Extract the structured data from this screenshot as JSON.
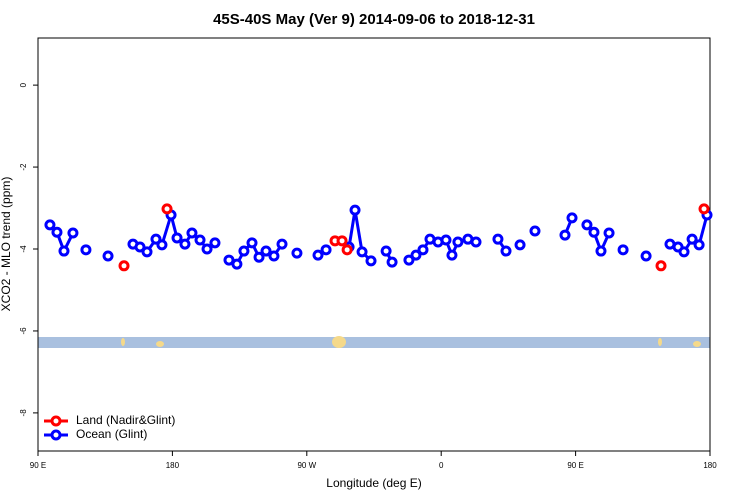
{
  "chart_data": {
    "type": "line",
    "title": "45S-40S May (Ver 9)   2014-09-06 to 2018-12-31",
    "xlabel": "Longitude (deg E)",
    "ylabel": "XCO2 - MLO trend (ppm)",
    "xlim": [
      90,
      540
    ],
    "ylim": [
      -8.93,
      1.15
    ],
    "xticks": [
      {
        "value": 90,
        "label": "90 E"
      },
      180,
      {
        "value": 270,
        "label": "90 W"
      },
      {
        "value": 360,
        "label": "0"
      },
      {
        "value": 450,
        "label": "90 E"
      },
      {
        "value": 540,
        "label": "180"
      }
    ],
    "yticks": [
      0,
      -2,
      -4,
      -6,
      -8
    ],
    "legend": "lower left",
    "series": [
      {
        "name": "Land (Nadir&Glint)",
        "color": "#ff0000",
        "x": [
          147.6,
          null,
          176.4,
          null,
          288.9,
          293.6,
          297,
          null,
          507.2,
          null,
          536
        ],
        "values": [
          -4.41,
          null,
          -3.02,
          null,
          -3.8,
          -3.8,
          -4.02,
          null,
          -4.41,
          null,
          -3.02
        ]
      },
      {
        "name": "Ocean (Glint)",
        "color": "#0000ff",
        "x": [
          98,
          102.7,
          107.4,
          113.4,
          null,
          122.1,
          null,
          136.9,
          null,
          153.6,
          158.3,
          163,
          169,
          173,
          179.1,
          183.1,
          188.4,
          193.1,
          198.5,
          203.2,
          208.5,
          null,
          217.9,
          223.2,
          227.9,
          233.3,
          238,
          242.7,
          248,
          253.4,
          null,
          263.4,
          null,
          277.5,
          282.9,
          null,
          298.3,
          302.3,
          307,
          313,
          null,
          323.1,
          327.1,
          null,
          338.4,
          343.1,
          347.8,
          352.5,
          357.9,
          363.2,
          367.2,
          371.2,
          377.9,
          383.3,
          null,
          398,
          403.4,
          null,
          412.8,
          null,
          422.8,
          null,
          442.9,
          447.6,
          null,
          457.6,
          462.3,
          467,
          472.4,
          null,
          481.8,
          null,
          497.2,
          null,
          513.2,
          518.6,
          522.6,
          528,
          532.7,
          538
        ],
        "values": [
          -3.41,
          -3.59,
          -4.05,
          -3.61,
          null,
          -4.02,
          null,
          -4.17,
          null,
          -3.88,
          -3.95,
          -4.07,
          -3.76,
          -3.9,
          -3.17,
          -3.73,
          -3.88,
          -3.61,
          -3.78,
          -4.0,
          -3.85,
          null,
          -4.27,
          -4.37,
          -4.05,
          -3.85,
          -4.2,
          -4.05,
          -4.17,
          -3.88,
          null,
          -4.1,
          null,
          -4.15,
          -4.02,
          null,
          -3.95,
          -3.05,
          -4.07,
          -4.29,
          null,
          -4.05,
          -4.32,
          null,
          -4.27,
          -4.15,
          -4.02,
          -3.76,
          -3.83,
          -3.78,
          -4.15,
          -3.83,
          -3.76,
          -3.83,
          null,
          -3.76,
          -4.05,
          null,
          -3.9,
          null,
          -3.56,
          null,
          -3.66,
          -3.24,
          null,
          -3.41,
          -3.59,
          -4.05,
          -3.61,
          null,
          -4.02,
          null,
          -4.17,
          null,
          -3.88,
          -3.95,
          -4.07,
          -3.76,
          -3.9,
          -3.17
        ]
      }
    ]
  }
}
